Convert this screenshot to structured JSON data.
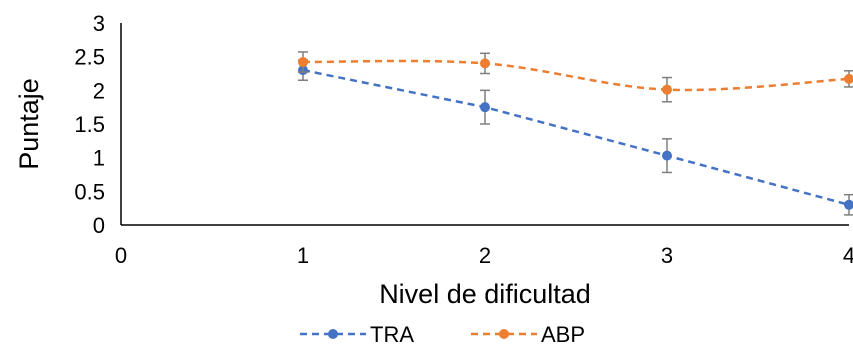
{
  "chart_data": {
    "type": "line",
    "xlabel": "Nivel de dificultad",
    "ylabel": "Puntaje",
    "xlim": [
      0,
      4
    ],
    "ylim": [
      0,
      3
    ],
    "x_ticks": [
      "0",
      "1",
      "2",
      "3",
      "4"
    ],
    "y_ticks": [
      "0",
      "0.5",
      "1",
      "1.5",
      "2",
      "2.5",
      "3"
    ],
    "grid": false,
    "legend_position": "bottom",
    "x": [
      1,
      2,
      3,
      4
    ],
    "series": [
      {
        "name": "TRA",
        "color": "#4472C4",
        "line_style": "dashed",
        "smooth": false,
        "values": [
          2.3,
          1.75,
          1.03,
          0.3
        ],
        "error": [
          0.15,
          0.25,
          0.25,
          0.15
        ]
      },
      {
        "name": "ABP",
        "color": "#ED7D31",
        "line_style": "dashed",
        "smooth": true,
        "values": [
          2.42,
          2.4,
          2.01,
          2.17
        ],
        "error": [
          0.15,
          0.15,
          0.18,
          0.12
        ]
      }
    ]
  }
}
